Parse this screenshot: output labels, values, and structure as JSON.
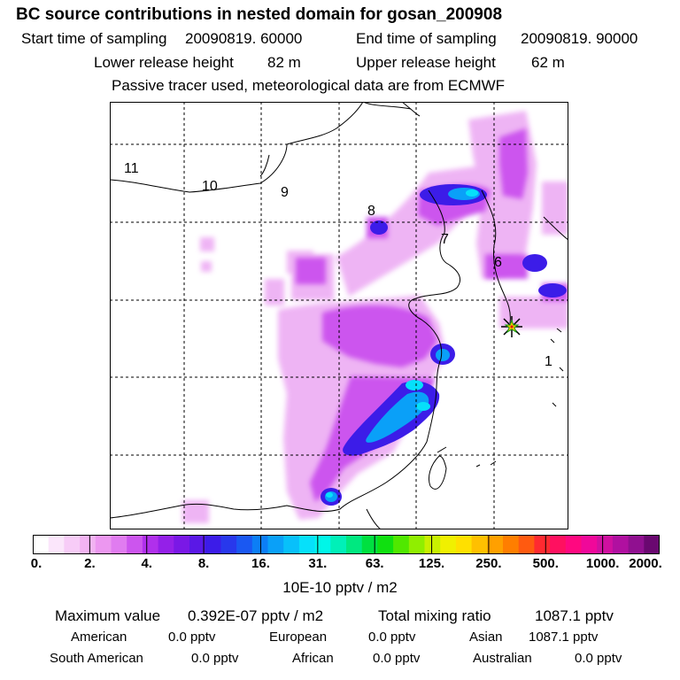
{
  "header": {
    "title": "BC  source contributions in nested domain for gosan_200908",
    "start_label": "Start time of sampling",
    "start_value": "20090819. 60000",
    "end_label": "End time of sampling",
    "end_value": "20090819. 90000",
    "lower_label": "Lower release height",
    "lower_value": "82 m",
    "upper_label": "Upper release height",
    "upper_value": "62 m",
    "note": "Passive tracer used, meteorological data are from ECMWF"
  },
  "map": {
    "region_labels": [
      "11",
      "10",
      "9",
      "8",
      "7",
      "6",
      "1"
    ],
    "receptor": "gosan-station-star"
  },
  "colorbar": {
    "colors": [
      "#ffffff",
      "#fbe6fb",
      "#f7ccf7",
      "#f2b3f2",
      "#ec97f0",
      "#e07cf0",
      "#cc55ee",
      "#b030ec",
      "#9420e8",
      "#7a18e6",
      "#5a18e6",
      "#3c1ce8",
      "#2838ec",
      "#1a58f2",
      "#0c7ef6",
      "#0aa0f8",
      "#08c0fa",
      "#06e0fa",
      "#00f6e8",
      "#00f0b8",
      "#00e880",
      "#00e040",
      "#10e010",
      "#50e800",
      "#90ee00",
      "#c8f000",
      "#f0f000",
      "#ffe000",
      "#ffc000",
      "#ffa000",
      "#ff7e00",
      "#ff5a10",
      "#ff2a30",
      "#ff1060",
      "#ff0880",
      "#f0089a",
      "#d010a0",
      "#b010a0",
      "#901090",
      "#6a0870"
    ],
    "labels": [
      "0.",
      "2.",
      "4.",
      "8.",
      "16.",
      "31.",
      "63.",
      "125.",
      "250.",
      "500.",
      "1000.",
      "2000."
    ],
    "unit": "10E-10 pptv / m2"
  },
  "stats": {
    "max_label": "Maximum value",
    "max_value": "0.392E-07 pptv / m2",
    "total_label": "Total mixing ratio",
    "total_value": "1087.1 pptv"
  },
  "regions": [
    {
      "name": "American",
      "value": "0.0 pptv"
    },
    {
      "name": "European",
      "value": "0.0 pptv"
    },
    {
      "name": "Asian",
      "value": "1087.1 pptv"
    },
    {
      "name": "South American",
      "value": "0.0 pptv"
    },
    {
      "name": "African",
      "value": "0.0 pptv"
    },
    {
      "name": "Australian",
      "value": "0.0 pptv"
    }
  ]
}
